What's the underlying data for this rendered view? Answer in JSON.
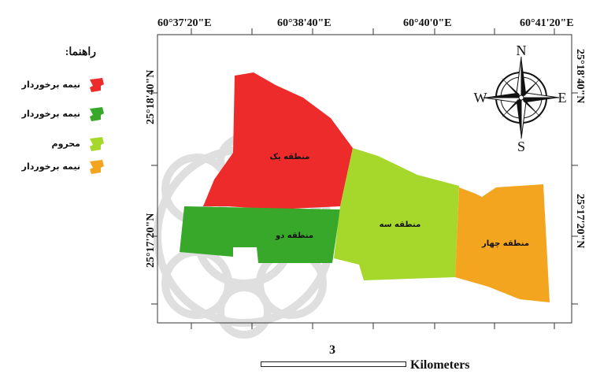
{
  "legend": {
    "title": "راهنما:",
    "items": [
      {
        "label": "نیمه برخوردار",
        "color": "#ee2b2b"
      },
      {
        "label": "نیمه برخوردار",
        "color": "#38a82a"
      },
      {
        "label": "محروم",
        "color": "#a5d82a"
      },
      {
        "label": "نیمه برخوردار",
        "color": "#f4a51f"
      }
    ]
  },
  "coordinates": {
    "top": [
      "60°37'20\"E",
      "60°38'40\"E",
      "60°40'0\"E",
      "60°41'20\"E"
    ],
    "left": [
      "25°18'40\"N",
      "25°17'20\"N"
    ],
    "right": [
      "25°18'40\"N",
      "25°17'20\"N"
    ]
  },
  "zones": [
    {
      "label": "منطقه یک",
      "color": "#ee2b2b"
    },
    {
      "label": "منطقه دو",
      "color": "#38a82a"
    },
    {
      "label": "منطقه سه",
      "color": "#a5d82a"
    },
    {
      "label": "منطقه چهار",
      "color": "#f4a51f"
    }
  ],
  "compass": {
    "n": "N",
    "e": "E",
    "s": "S",
    "w": "W"
  },
  "scale": {
    "value": "3",
    "unit": "Kilometers"
  }
}
